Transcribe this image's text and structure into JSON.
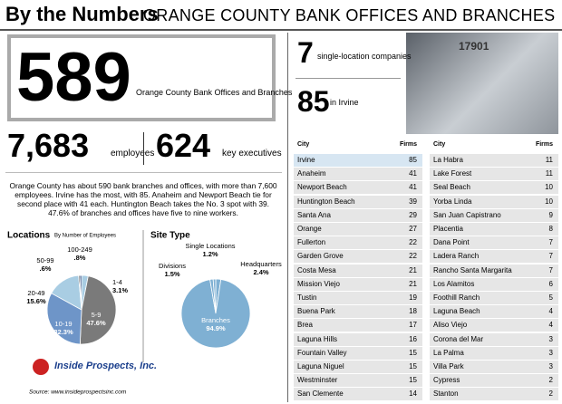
{
  "header": {
    "title": "By the Numbers",
    "subtitle": "ORANGE COUNTY BANK OFFICES AND BRANCHES"
  },
  "stats": {
    "total": 589,
    "total_label": "Orange County Bank Offices and Branches",
    "single": 7,
    "single_label": "single-location companies",
    "irvine": 85,
    "irvine_label": "in Irvine",
    "employees": "7,683",
    "employees_label": "employees",
    "executives": 624,
    "executives_label": "key executives"
  },
  "photo": {
    "label": "17901"
  },
  "paragraph": "Orange County has about 590 bank branches and offices, with more than 7,600 employees. Irvine has the most, with 85. Anaheim and Newport Beach tie for second place with 41 each. Huntington Beach takes the No. 3 spot with 39. 47.6% of branches and offices have five to nine workers.",
  "chart_data": [
    {
      "type": "pie",
      "title": "Locations",
      "subtitle": "By Number of Employees",
      "categories": [
        "1-4",
        "5-9",
        "10-19",
        "20-49",
        "50-99",
        "100-249"
      ],
      "values": [
        3.1,
        47.6,
        32.3,
        15.6,
        0.6,
        0.8
      ],
      "value_labels": [
        "3.1%",
        "47.6%",
        "32.3%",
        "15.6%",
        ".6%",
        ".8%"
      ],
      "colors": [
        "#a9cde3",
        "#7a7a7a",
        "#6e95c8",
        "#a9cde3",
        "#3a3a3a",
        "#1f3f78"
      ]
    },
    {
      "type": "pie",
      "title": "Site Type",
      "categories": [
        "Headquarters",
        "Branches",
        "Divisions",
        "Single Locations"
      ],
      "values": [
        2.4,
        94.9,
        1.5,
        1.2
      ],
      "value_labels": [
        "2.4%",
        "94.9%",
        "1.5%",
        "1.2%"
      ],
      "colors": [
        "#7fb0d3",
        "#7fb0d3",
        "#7fb0d3",
        "#7fb0d3"
      ]
    }
  ],
  "table": {
    "headers": [
      "City",
      "Firms"
    ],
    "left": [
      [
        "Irvine",
        85
      ],
      [
        "Anaheim",
        41
      ],
      [
        "Newport Beach",
        41
      ],
      [
        "Huntington Beach",
        39
      ],
      [
        "Santa Ana",
        29
      ],
      [
        "Orange",
        27
      ],
      [
        "Fullerton",
        22
      ],
      [
        "Garden Grove",
        22
      ],
      [
        "Costa Mesa",
        21
      ],
      [
        "Mission Viejo",
        21
      ],
      [
        "Tustin",
        19
      ],
      [
        "Buena Park",
        18
      ],
      [
        "Brea",
        17
      ],
      [
        "Laguna Hills",
        16
      ],
      [
        "Fountain Valley",
        15
      ],
      [
        "Laguna Niguel",
        15
      ],
      [
        "Westminster",
        15
      ],
      [
        "San Clemente",
        14
      ]
    ],
    "right": [
      [
        "La Habra",
        11
      ],
      [
        "Lake Forest",
        11
      ],
      [
        "Seal Beach",
        10
      ],
      [
        "Yorba Linda",
        10
      ],
      [
        "San Juan Capistrano",
        9
      ],
      [
        "Placentia",
        8
      ],
      [
        "Dana Point",
        7
      ],
      [
        "Ladera Ranch",
        7
      ],
      [
        "Rancho Santa Margarita",
        7
      ],
      [
        "Los Alamitos",
        6
      ],
      [
        "Foothill Ranch",
        5
      ],
      [
        "Laguna Beach",
        4
      ],
      [
        "Aliso Viejo",
        4
      ],
      [
        "Corona del Mar",
        3
      ],
      [
        "La Palma",
        3
      ],
      [
        "Villa Park",
        3
      ],
      [
        "Cypress",
        2
      ],
      [
        "Stanton",
        2
      ]
    ]
  },
  "logo": {
    "name": "Inside Prospects, Inc.",
    "source": "Source: www.insideprospectsinc.com"
  }
}
